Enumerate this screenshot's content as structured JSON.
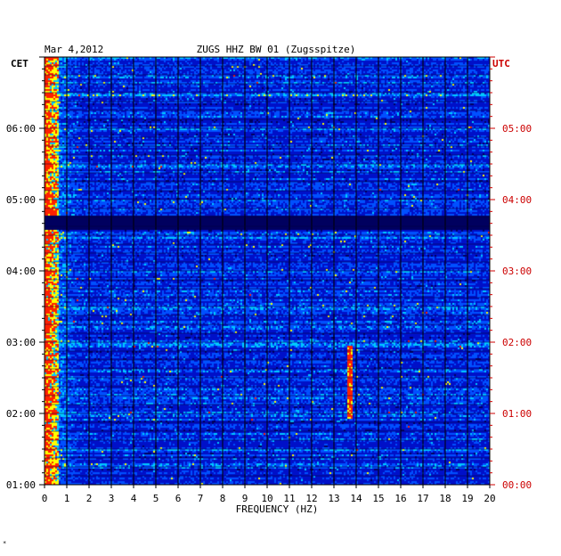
{
  "chart_data": {
    "type": "heatmap",
    "title": "ZUGS HHZ BW 01 (Zugsspitze)",
    "date": "Mar 4,2012",
    "xlabel": "FREQUENCY (HZ)",
    "xlim": [
      0,
      20
    ],
    "x_ticks": [
      "0",
      "1",
      "2",
      "3",
      "4",
      "5",
      "6",
      "7",
      "8",
      "9",
      "10",
      "11",
      "12",
      "13",
      "14",
      "15",
      "16",
      "17",
      "18",
      "19",
      "20"
    ],
    "left_axis": {
      "label": "CET",
      "ticks": [
        "06:00",
        "05:00",
        "04:00",
        "03:00",
        "02:00",
        "01:00"
      ],
      "tick_hours": [
        6,
        5,
        4,
        3,
        2,
        1
      ]
    },
    "right_axis": {
      "label": "UTC",
      "ticks": [
        "05:00",
        "04:00",
        "03:00",
        "02:00",
        "01:00",
        "00:00"
      ],
      "tick_hours": [
        5,
        4,
        3,
        2,
        1,
        0
      ]
    },
    "time_range_cet": [
      1.0,
      7.0
    ],
    "grid": true,
    "colormap": [
      "#00005f",
      "#0010c8",
      "#0050ff",
      "#00c8ff",
      "#ffff00",
      "#ff2000"
    ],
    "features": [
      {
        "description_freq_hz": [
          0,
          0.6
        ],
        "note": "strong low-frequency energy throughout"
      },
      {
        "freq_hz": 13.7,
        "time_cet": [
          1.95,
          2.95
        ],
        "note": "narrow spectral line"
      },
      {
        "time_cet": [
          4.6,
          4.78
        ],
        "note": "data gap band"
      }
    ],
    "corner_mark": "*"
  },
  "colors": {
    "axis": "#000000",
    "utc_text": "#cc0000",
    "background": "#ffffff"
  }
}
